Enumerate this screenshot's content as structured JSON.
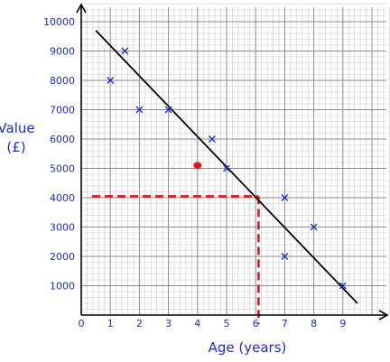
{
  "chart_data": {
    "type": "scatter",
    "title": "",
    "xlabel": "Age (years)",
    "ylabel_lines": [
      "Value",
      "(£)"
    ],
    "xlim": [
      0,
      10.5
    ],
    "ylim": [
      0,
      10500
    ],
    "x_ticks": [
      0,
      1,
      2,
      3,
      4,
      5,
      6,
      7,
      8,
      9
    ],
    "y_ticks": [
      1000,
      2000,
      3000,
      4000,
      5000,
      6000,
      7000,
      8000,
      9000,
      10000
    ],
    "grid": true,
    "minor_grid_step": {
      "x": 0.2,
      "y": 200
    },
    "points": [
      {
        "x": 1,
        "y": 8000
      },
      {
        "x": 1.5,
        "y": 9000
      },
      {
        "x": 2,
        "y": 7000
      },
      {
        "x": 3,
        "y": 7000
      },
      {
        "x": 4.5,
        "y": 6000
      },
      {
        "x": 5,
        "y": 5000
      },
      {
        "x": 7,
        "y": 4000
      },
      {
        "x": 7,
        "y": 2000
      },
      {
        "x": 8,
        "y": 3000
      },
      {
        "x": 9,
        "y": 1000
      }
    ],
    "highlight_point": {
      "x": 4,
      "y": 5100
    },
    "line_of_best_fit": {
      "from": {
        "x": 0.5,
        "y": 9700
      },
      "to": {
        "x": 9.5,
        "y": 400
      }
    },
    "reading": {
      "x": 6.1,
      "y": 4050
    },
    "colors": {
      "marker": "#1a2cd6",
      "highlight": "#e8101a",
      "best_fit": "#000000",
      "reading_line": "#e8101a",
      "grid_major": "#8c8c8c",
      "grid_minor": "#cccccc",
      "labels": "#1a2cd6"
    }
  }
}
